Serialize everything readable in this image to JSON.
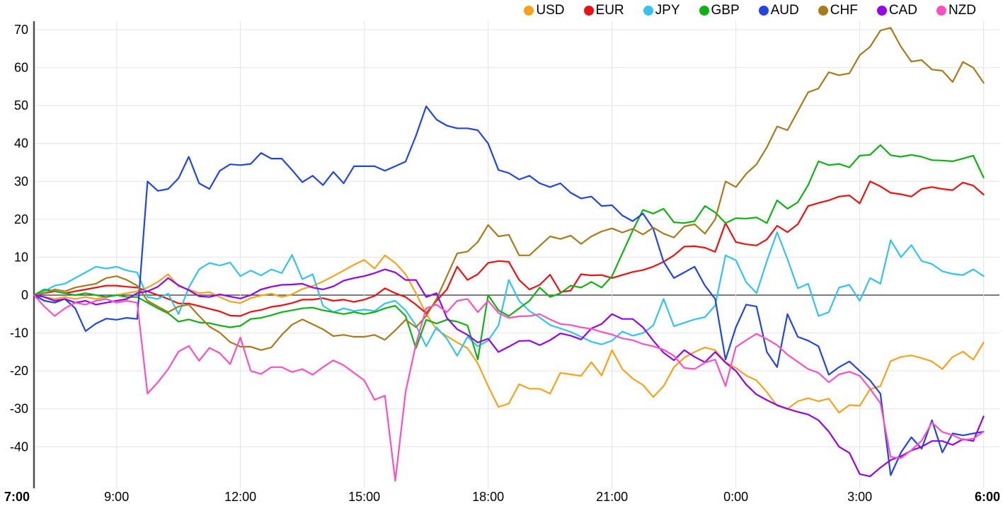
{
  "chart_data": {
    "type": "line",
    "description": "Intraday currency strength lines for 8 currencies from 7:00 to 6:00",
    "legend_position": "top-right",
    "grid": true,
    "colors": {
      "grid": "#e4e4e4",
      "axis": "#4a4a4a",
      "zero_line": "#2e2e2e",
      "text": "#000000"
    },
    "x_axis": {
      "start": "7:00",
      "end": "6:00",
      "interval_minutes": 15,
      "ticks": [
        {
          "label": "7:00",
          "hour": 0,
          "bold": true
        },
        {
          "label": "9:00",
          "hour": 2,
          "bold": false
        },
        {
          "label": "12:00",
          "hour": 5,
          "bold": false
        },
        {
          "label": "15:00",
          "hour": 8,
          "bold": false
        },
        {
          "label": "18:00",
          "hour": 11,
          "bold": false
        },
        {
          "label": "21:00",
          "hour": 14,
          "bold": false
        },
        {
          "label": "0:00",
          "hour": 17,
          "bold": false
        },
        {
          "label": "3:00",
          "hour": 20,
          "bold": false
        },
        {
          "label": "6:00",
          "hour": 23,
          "bold": true
        }
      ]
    },
    "y_axis": {
      "labels": [
        70,
        60,
        50,
        40,
        30,
        20,
        10,
        0,
        -10,
        -20,
        -30,
        -40
      ],
      "min_visible": -50,
      "max_visible": 72
    },
    "series": [
      {
        "name": "USD",
        "color": "#F7A21B",
        "values": [
          0,
          -0.5,
          -1,
          -0.5,
          -1,
          -0.5,
          -1,
          -0.5,
          0,
          0.5,
          1,
          2,
          3.5,
          5.5,
          2.3,
          1.5,
          0.5,
          0.8,
          -0.5,
          -1.7,
          -2.1,
          -0.8,
          -0.1,
          0.4,
          -0.5,
          0.2,
          1.6,
          2.4,
          3.6,
          5,
          6.5,
          8,
          9.3,
          7,
          10.5,
          8.5,
          5.5,
          0.5,
          -5,
          -9,
          -10.8,
          -12.5,
          -14,
          -18,
          -24,
          -29.5,
          -28.6,
          -23.5,
          -24.7,
          -24.7,
          -26,
          -20.5,
          -20.9,
          -21.3,
          -17.7,
          -21.2,
          -14.5,
          -19.5,
          -22,
          -23.7,
          -26.9,
          -24,
          -19,
          -16.5,
          -15,
          -13.8,
          -14.5,
          -17.7,
          -19.2,
          -21.2,
          -22.5,
          -25.6,
          -29.2,
          -30,
          -28,
          -27.2,
          -28,
          -27.3,
          -31,
          -29,
          -29.2,
          -24.8,
          -24,
          -17.4,
          -16.3,
          -15.9,
          -16.6,
          -17.5,
          -19.5,
          -16.3,
          -14.9,
          -17,
          -12.5
        ]
      },
      {
        "name": "EUR",
        "color": "#EE1111",
        "values": [
          0,
          0.5,
          1,
          0.5,
          1,
          1.5,
          2,
          2.5,
          2.5,
          2.2,
          2,
          1,
          0,
          -1,
          -2.2,
          -2.2,
          -2.9,
          -3.6,
          -4.3,
          -5.4,
          -5.5,
          -4.4,
          -3.9,
          -3.1,
          -2.7,
          -2.1,
          -1.2,
          -1.2,
          -0.8,
          -1.5,
          -1.2,
          -1.8,
          -1.2,
          -0.2,
          1.8,
          0.5,
          -0.5,
          -2.5,
          -4.8,
          -1.5,
          1.5,
          7.5,
          4,
          5.5,
          8.5,
          9,
          8.8,
          4,
          1.5,
          2.7,
          5.4,
          0.8,
          1.2,
          5.5,
          5.2,
          5.3,
          4.5,
          5.3,
          6.1,
          6.6,
          7.5,
          8.8,
          10.5,
          12.8,
          12.9,
          12.5,
          11.4,
          19,
          14,
          13.4,
          13.1,
          14.7,
          18.3,
          16.6,
          18.7,
          23.5,
          24.3,
          25,
          26,
          26.3,
          24.2,
          30,
          28.7,
          27,
          26.6,
          26,
          28,
          28.5,
          28,
          27.7,
          29.7,
          28.9,
          26.5
        ]
      },
      {
        "name": "JPY",
        "color": "#33C3F0",
        "values": [
          0,
          1,
          2.5,
          3,
          4.5,
          6,
          7.5,
          7,
          7.5,
          6.5,
          6,
          -0.5,
          -1,
          0.4,
          -5,
          2,
          6.8,
          8.5,
          7.8,
          8.6,
          5,
          6.5,
          5.2,
          6.8,
          5.8,
          10.6,
          4.2,
          5.5,
          -2.8,
          -4.5,
          -3.5,
          -4.2,
          -3.8,
          -4.2,
          -2.2,
          -1.5,
          -4,
          -8,
          -13.5,
          -8.5,
          -11.5,
          -16,
          -11,
          -13.5,
          -12,
          -8,
          4,
          -1.5,
          -4.2,
          -5.9,
          -7.9,
          -8.8,
          -9.7,
          -11,
          -12.3,
          -13,
          -12,
          -9.6,
          -10.7,
          -10,
          -8,
          -1,
          -8.2,
          -7.3,
          -6.4,
          -5.8,
          -2.7,
          10.5,
          9.2,
          3.4,
          0.5,
          9,
          16.6,
          9.5,
          1.8,
          3,
          -5.5,
          -4.5,
          2,
          2.7,
          -1.5,
          4.5,
          3,
          14.5,
          10,
          13.2,
          9,
          8.2,
          6.3,
          5.6,
          5.3,
          6.8,
          5
        ]
      },
      {
        "name": "GBP",
        "color": "#0FB215",
        "values": [
          0,
          1.5,
          1,
          0.5,
          0,
          0.5,
          0,
          -0.5,
          0,
          -0.5,
          -0.5,
          -2,
          -3.5,
          -4.8,
          -7,
          -6.4,
          -7.2,
          -7.4,
          -8,
          -8.5,
          -8.1,
          -6.3,
          -6,
          -5.3,
          -4.5,
          -4,
          -3.5,
          -3.3,
          -4,
          -4.5,
          -5,
          -4.5,
          -5,
          -4.5,
          -3.5,
          -2.8,
          -5.5,
          -14,
          -6.5,
          -7.5,
          -6.5,
          -7,
          -8,
          -17,
          0,
          -4,
          -5.5,
          -3.5,
          -1.5,
          2,
          -0.5,
          0.5,
          2.5,
          2,
          3.5,
          2,
          5,
          11,
          17,
          22.5,
          21.5,
          22.8,
          19.2,
          19,
          19.5,
          23.5,
          21.8,
          19,
          20.3,
          20.2,
          20.5,
          19,
          25,
          22.8,
          24.5,
          29,
          35.3,
          34.3,
          34.6,
          33.7,
          36.8,
          37,
          39.6,
          36.9,
          36.5,
          37,
          36.5,
          35.6,
          35.5,
          35.3,
          36,
          36.8,
          31
        ]
      },
      {
        "name": "AUD",
        "color": "#2245E2",
        "values": [
          0,
          -1.5,
          -2,
          -1,
          -3.5,
          -9.5,
          -7.5,
          -6.2,
          -6.5,
          -6,
          -6.3,
          30,
          27.5,
          28,
          30.8,
          36.5,
          29.5,
          28,
          32.8,
          34.5,
          34.3,
          34.6,
          37.5,
          36,
          36,
          33,
          29.8,
          31.5,
          29,
          32.5,
          29.5,
          34,
          34,
          34,
          32.8,
          34,
          35.2,
          42,
          49.8,
          46.3,
          44.7,
          44,
          44,
          43.5,
          40,
          33,
          32.2,
          30.5,
          31.5,
          29.5,
          28.5,
          29.5,
          27,
          25.5,
          26,
          23.5,
          23.7,
          21,
          19.5,
          21.5,
          17.5,
          8.8,
          4.5,
          6,
          7.5,
          2.5,
          -1,
          -17,
          -8.5,
          -2.5,
          -3,
          -15,
          -19,
          -5,
          -11,
          -12,
          -13.5,
          -21,
          -19,
          -17.5,
          -20,
          -22.5,
          -26,
          -47.5,
          -41.5,
          -37.5,
          -40.5,
          -33,
          -41.5,
          -36.5,
          -37,
          -36.5,
          -36
        ]
      },
      {
        "name": "CHF",
        "color": "#A67B1C",
        "values": [
          0,
          0.5,
          1.5,
          1,
          2,
          2.5,
          3,
          4.5,
          5,
          4,
          2.5,
          -1.5,
          -3,
          -4.5,
          -3,
          -2.5,
          -5.5,
          -8.3,
          -9.9,
          -12.4,
          -13.6,
          -13.6,
          -14.5,
          -13.8,
          -10.5,
          -7.8,
          -6.4,
          -7.7,
          -9,
          -10.8,
          -10.5,
          -11,
          -11,
          -10.5,
          -11.8,
          -9.3,
          -6.5,
          -8.5,
          -5.5,
          -1,
          5,
          11,
          11.5,
          14,
          18.5,
          15.5,
          15.9,
          10.5,
          10.5,
          13,
          15.5,
          14.8,
          15.7,
          13.5,
          15.5,
          16.8,
          17.6,
          16.5,
          17.5,
          16,
          17.8,
          16.2,
          15.2,
          18.1,
          18.7,
          16.2,
          20,
          30,
          28.5,
          32,
          34.5,
          39,
          44.5,
          43.5,
          48.5,
          53.5,
          54.5,
          58.8,
          58,
          58.5,
          63.3,
          65.5,
          69.8,
          70.5,
          65.5,
          61.6,
          62,
          59.5,
          59.2,
          56.2,
          61.5,
          60,
          56
        ]
      },
      {
        "name": "CAD",
        "color": "#9405E8",
        "values": [
          0,
          -0.5,
          -1.5,
          -1,
          -2,
          -1.5,
          -2.5,
          -2,
          -1.5,
          -1,
          0.5,
          1,
          2.2,
          4.5,
          2.6,
          1.3,
          -0.3,
          -0.5,
          0.2,
          -0.4,
          -0.9,
          0,
          1.5,
          2.2,
          2.7,
          2.8,
          3,
          2,
          1.5,
          2.3,
          3.8,
          4.5,
          5,
          5.8,
          6.8,
          6,
          4,
          4,
          -0.5,
          0.5,
          -6,
          -9,
          -10.5,
          -12.5,
          -11.5,
          -15,
          -13.6,
          -12.1,
          -12,
          -13.2,
          -11.9,
          -10.1,
          -10.7,
          -11.7,
          -8.8,
          -7.6,
          -5,
          -6.3,
          -6.3,
          -8.5,
          -12,
          -15.2,
          -17.2,
          -14.5,
          -16.3,
          -17.7,
          -15,
          -17.8,
          -20,
          -23.6,
          -26.2,
          -27.7,
          -29,
          -30,
          -30.8,
          -31.5,
          -33,
          -36,
          -40,
          -41.6,
          -47.2,
          -47.8,
          -45.5,
          -43.5,
          -42.5,
          -41,
          -40,
          -38.5,
          -38.5,
          -39.5,
          -38,
          -38.5,
          -32
        ]
      },
      {
        "name": "NZD",
        "color": "#FB50C4",
        "values": [
          0,
          -3,
          -5.5,
          -3.5,
          -2,
          -2.5,
          -1.5,
          -1,
          -2,
          -1.5,
          -2,
          -26,
          -23,
          -19.5,
          -14.9,
          -13.4,
          -17.3,
          -13.9,
          -15.3,
          -18.2,
          -11.2,
          -20,
          -20.8,
          -19,
          -19,
          -20.3,
          -19.5,
          -21,
          -19,
          -17.2,
          -18.5,
          -20.5,
          -22.5,
          -27.6,
          -26.5,
          -49,
          -25.5,
          -13,
          -3.5,
          -2.5,
          -4.5,
          -1.5,
          -1,
          -4.5,
          -1.5,
          -4.7,
          -6,
          -5.6,
          -5.5,
          -5,
          -6.4,
          -7.6,
          -7.9,
          -8.5,
          -8.9,
          -9.7,
          -10.4,
          -11.4,
          -11.9,
          -12.9,
          -13.5,
          -14.4,
          -16,
          -19.2,
          -19.5,
          -17.8,
          -17,
          -24,
          -13.7,
          -11.9,
          -10.2,
          -11.6,
          -13.2,
          -15.7,
          -17.6,
          -19.5,
          -20.5,
          -23,
          -20.9,
          -20.2,
          -21.3,
          -24.7,
          -28.5,
          -42.7,
          -43,
          -40.9,
          -38.4,
          -33.6,
          -36.1,
          -36.9,
          -38.2,
          -37.9,
          -36
        ]
      }
    ]
  }
}
